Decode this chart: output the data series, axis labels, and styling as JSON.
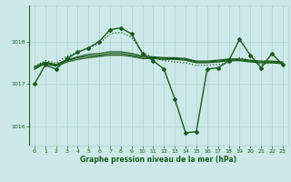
{
  "background_color": "#cce8e8",
  "grid_color": "#b0d0d0",
  "line_color": "#1a5c1a",
  "xlabel": "Graphe pression niveau de la mer (hPa)",
  "xlim": [
    -0.5,
    23.5
  ],
  "ylim": [
    1015.55,
    1018.85
  ],
  "yticks": [
    1016,
    1017,
    1018
  ],
  "xticks": [
    0,
    1,
    2,
    3,
    4,
    5,
    6,
    7,
    8,
    9,
    10,
    11,
    12,
    13,
    14,
    15,
    16,
    17,
    18,
    19,
    20,
    21,
    22,
    23
  ],
  "series": [
    {
      "x": [
        0,
        1,
        2,
        3,
        4,
        5,
        6,
        7,
        8,
        9,
        10,
        11,
        12,
        13,
        14,
        15,
        16,
        17,
        18,
        19,
        20,
        21,
        22,
        23
      ],
      "y": [
        1017.35,
        1017.48,
        1017.42,
        1017.52,
        1017.58,
        1017.62,
        1017.65,
        1017.68,
        1017.68,
        1017.65,
        1017.6,
        1017.6,
        1017.58,
        1017.58,
        1017.56,
        1017.5,
        1017.5,
        1017.52,
        1017.55,
        1017.55,
        1017.52,
        1017.5,
        1017.5,
        1017.48
      ],
      "marker": false,
      "linewidth": 0.9,
      "linestyle": "-"
    },
    {
      "x": [
        0,
        1,
        2,
        3,
        4,
        5,
        6,
        7,
        8,
        9,
        10,
        11,
        12,
        13,
        14,
        15,
        16,
        17,
        18,
        19,
        20,
        21,
        22,
        23
      ],
      "y": [
        1017.38,
        1017.5,
        1017.44,
        1017.55,
        1017.62,
        1017.66,
        1017.68,
        1017.72,
        1017.72,
        1017.68,
        1017.63,
        1017.62,
        1017.6,
        1017.6,
        1017.58,
        1017.52,
        1017.52,
        1017.54,
        1017.57,
        1017.57,
        1017.54,
        1017.52,
        1017.52,
        1017.5
      ],
      "marker": false,
      "linewidth": 0.9,
      "linestyle": "-"
    },
    {
      "x": [
        0,
        1,
        2,
        3,
        4,
        5,
        6,
        7,
        8,
        9,
        10,
        11,
        12,
        13,
        14,
        15,
        16,
        17,
        18,
        19,
        20,
        21,
        22,
        23
      ],
      "y": [
        1017.4,
        1017.52,
        1017.46,
        1017.57,
        1017.64,
        1017.7,
        1017.72,
        1017.76,
        1017.76,
        1017.72,
        1017.66,
        1017.64,
        1017.62,
        1017.62,
        1017.6,
        1017.54,
        1017.54,
        1017.56,
        1017.59,
        1017.59,
        1017.56,
        1017.54,
        1017.54,
        1017.52
      ],
      "marker": false,
      "linewidth": 0.9,
      "linestyle": "-"
    },
    {
      "x": [
        0,
        1,
        2,
        3,
        4,
        5,
        6,
        7,
        8,
        9,
        10,
        11,
        12,
        13,
        14,
        15,
        16,
        17,
        18,
        19,
        20,
        21,
        22,
        23
      ],
      "y": [
        1017.42,
        1017.55,
        1017.5,
        1017.65,
        1017.75,
        1017.85,
        1017.95,
        1018.18,
        1018.22,
        1018.1,
        1017.75,
        1017.62,
        1017.55,
        1017.52,
        1017.5,
        1017.44,
        1017.44,
        1017.46,
        1017.5,
        1017.62,
        1017.55,
        1017.46,
        1017.5,
        1017.48
      ],
      "marker": false,
      "linewidth": 0.9,
      "linestyle": ":"
    },
    {
      "x": [
        0,
        1,
        2,
        3,
        4,
        5,
        6,
        7,
        8,
        9,
        10,
        11,
        12,
        13,
        14,
        15,
        16,
        17,
        18,
        19,
        20,
        21,
        22,
        23
      ],
      "y": [
        1017.0,
        1017.45,
        1017.35,
        1017.6,
        1017.75,
        1017.85,
        1018.0,
        1018.28,
        1018.32,
        1018.18,
        1017.72,
        1017.55,
        1017.35,
        1016.65,
        1015.85,
        1015.88,
        1017.35,
        1017.38,
        1017.55,
        1018.05,
        1017.68,
        1017.38,
        1017.72,
        1017.45
      ],
      "marker": true,
      "linewidth": 1.0,
      "linestyle": "-"
    }
  ]
}
